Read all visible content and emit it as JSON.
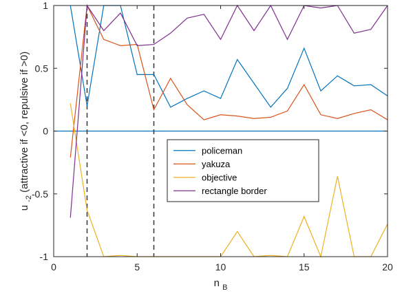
{
  "chart_data": {
    "type": "line",
    "title": "",
    "xlabel": "n",
    "xlabel_subscript": "B",
    "ylabel": "u",
    "ylabel_subscript": "-2",
    "ylabel_suffix": " (attractive if <0, repulsive if >0)",
    "xlim": [
      0,
      20
    ],
    "ylim": [
      -1,
      1
    ],
    "xticks": [
      0,
      5,
      10,
      15,
      20
    ],
    "yticks": [
      -1,
      -0.5,
      0,
      0.5,
      1
    ],
    "xtick_labels": [
      "0",
      "5",
      "10",
      "15",
      "20"
    ],
    "ytick_labels": [
      "-1",
      "-0.5",
      "0",
      "0.5",
      "1"
    ],
    "grid": false,
    "legend_position": "center-right",
    "zero_line": {
      "y": 0,
      "color": "#0072BD"
    },
    "vlines": [
      2,
      6
    ],
    "series": [
      {
        "name": "policeman",
        "color": "#0072BD",
        "x": [
          1,
          2,
          3,
          4,
          5,
          6,
          7,
          8,
          9,
          10,
          11,
          12,
          13,
          14,
          15,
          16,
          17,
          18,
          19,
          20
        ],
        "values": [
          1.0,
          0.2,
          1.0,
          1.0,
          0.45,
          0.45,
          0.19,
          0.26,
          0.32,
          0.26,
          0.57,
          0.38,
          0.19,
          0.34,
          0.66,
          0.32,
          0.44,
          0.36,
          0.37,
          0.28
        ]
      },
      {
        "name": "yakuza",
        "color": "#D95319",
        "x": [
          1,
          2,
          3,
          4,
          5,
          6,
          7,
          8,
          9,
          10,
          11,
          12,
          13,
          14,
          15,
          16,
          17,
          18,
          19,
          20
        ],
        "values": [
          -0.21,
          1.0,
          0.73,
          0.68,
          0.69,
          0.17,
          0.42,
          0.21,
          0.09,
          0.13,
          0.12,
          0.1,
          0.11,
          0.16,
          0.37,
          0.13,
          0.1,
          0.14,
          0.17,
          0.09
        ]
      },
      {
        "name": "objective",
        "color": "#EDB120",
        "x": [
          1,
          2,
          3,
          4,
          5,
          6,
          7,
          8,
          9,
          10,
          11,
          12,
          13,
          14,
          15,
          16,
          17,
          18,
          19,
          20
        ],
        "values": [
          0.22,
          -0.63,
          -1.0,
          -0.99,
          -1.0,
          -1.0,
          -1.0,
          -1.0,
          -1.0,
          -1.0,
          -0.8,
          -1.0,
          -0.99,
          -1.0,
          -0.68,
          -1.0,
          -0.36,
          -1.0,
          -1.0,
          -0.74
        ]
      },
      {
        "name": "rectangle border",
        "color": "#7E2F8E",
        "x": [
          1,
          2,
          3,
          4,
          5,
          6,
          7,
          8,
          9,
          10,
          11,
          12,
          13,
          14,
          15,
          16,
          17,
          18,
          19,
          20
        ],
        "values": [
          -0.69,
          1.0,
          0.8,
          0.94,
          0.68,
          0.69,
          0.78,
          0.9,
          0.93,
          0.73,
          1.0,
          0.8,
          1.0,
          0.73,
          1.0,
          0.98,
          1.0,
          0.78,
          0.81,
          1.0
        ]
      }
    ]
  }
}
